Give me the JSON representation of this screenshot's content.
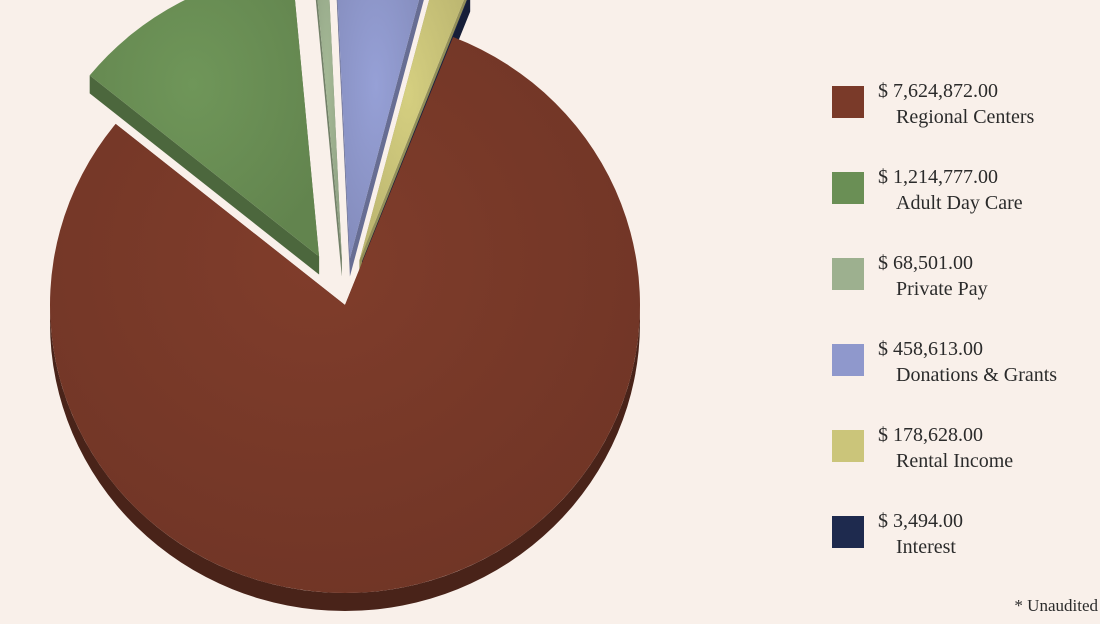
{
  "chart_data": {
    "type": "pie",
    "slices": [
      {
        "value_label": "$ 7,624,872.00",
        "label": "Regional Centers",
        "value": 7624872.0,
        "color": "#7a3a29"
      },
      {
        "value_label": "$ 1,214,777.00",
        "label": "Adult Day Care",
        "value": 1214777.0,
        "color": "#6a8f55"
      },
      {
        "value_label": "$ 68,501.00",
        "label": "Private Pay",
        "value": 68501.0,
        "color": "#9db08f"
      },
      {
        "value_label": "$ 458,613.00",
        "label": "Donations & Grants",
        "value": 458613.0,
        "color": "#8f98cc"
      },
      {
        "value_label": "$ 178,628.00",
        "label": "Rental Income",
        "value": 178628.0,
        "color": "#cbc57a"
      },
      {
        "value_label": "$ 3,494.00",
        "label": "Interest",
        "value": 3494.0,
        "color": "#1e2a4e"
      }
    ],
    "legend_position": "right",
    "style": "3d-exploded"
  },
  "footnote": "* Unaudited",
  "background_color": "#f9f0ea"
}
